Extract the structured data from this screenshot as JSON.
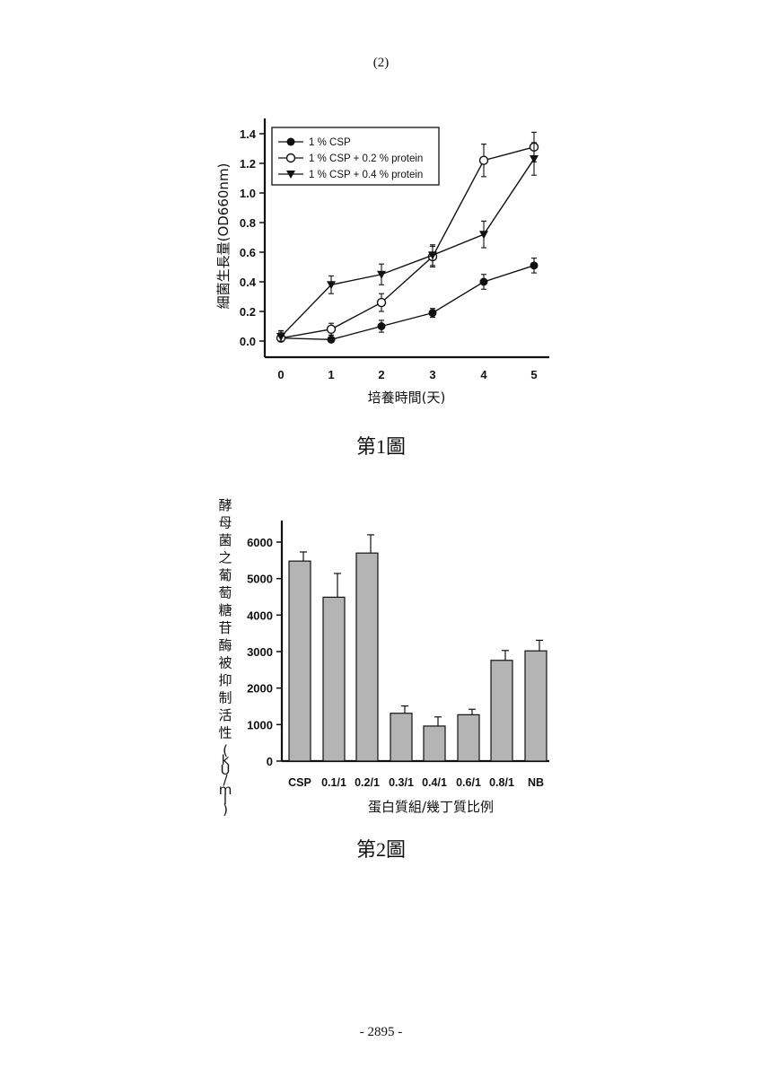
{
  "page": {
    "header": "(2)",
    "footer": "- 2895 -"
  },
  "chart_data": [
    {
      "type": "line",
      "caption": "第1圖",
      "xlabel": "培養時間(天)",
      "ylabel": "細菌生長量(OD660nm)",
      "x": [
        0,
        1,
        2,
        3,
        4,
        5
      ],
      "xticks": [
        "0",
        "1",
        "2",
        "3",
        "4",
        "5"
      ],
      "yticks": [
        "0.0",
        "0.2",
        "0.4",
        "0.6",
        "0.8",
        "1.0",
        "1.2",
        "1.4"
      ],
      "ylim": [
        0,
        1.4
      ],
      "legend_position": "top-left",
      "series": [
        {
          "name": "1 % CSP",
          "marker": "filled-circle",
          "values": [
            0.02,
            0.01,
            0.1,
            0.19,
            0.4,
            0.51
          ],
          "errors": [
            0.05,
            0.03,
            0.04,
            0.03,
            0.05,
            0.05
          ]
        },
        {
          "name": "1 % CSP + 0.2 % protein",
          "marker": "open-circle",
          "values": [
            0.02,
            0.08,
            0.26,
            0.57,
            1.22,
            1.31
          ],
          "errors": [
            0.04,
            0.04,
            0.06,
            0.07,
            0.11,
            0.1
          ]
        },
        {
          "name": "1 % CSP + 0.4 % protein",
          "marker": "filled-triangle-down",
          "values": [
            0.03,
            0.38,
            0.45,
            0.58,
            0.72,
            1.23
          ],
          "errors": [
            0.04,
            0.06,
            0.07,
            0.07,
            0.09,
            0.11
          ]
        }
      ]
    },
    {
      "type": "bar",
      "caption": "第2圖",
      "xlabel": "蛋白質組/幾丁質比例",
      "ylabel": "酵母菌之葡萄糖苷酶被抑制活性(kU/ml)",
      "categories": [
        "CSP",
        "0.1/1",
        "0.2/1",
        "0.3/1",
        "0.4/1",
        "0.6/1",
        "0.8/1",
        "NB"
      ],
      "values": [
        5480,
        4490,
        5700,
        1310,
        960,
        1270,
        2760,
        3020
      ],
      "errors": [
        250,
        650,
        500,
        200,
        250,
        150,
        270,
        290
      ],
      "yticks": [
        "0",
        "1000",
        "2000",
        "3000",
        "4000",
        "5000",
        "6000"
      ],
      "ylim": [
        0,
        6600
      ],
      "bar_fill": "#b4b4b4"
    }
  ]
}
